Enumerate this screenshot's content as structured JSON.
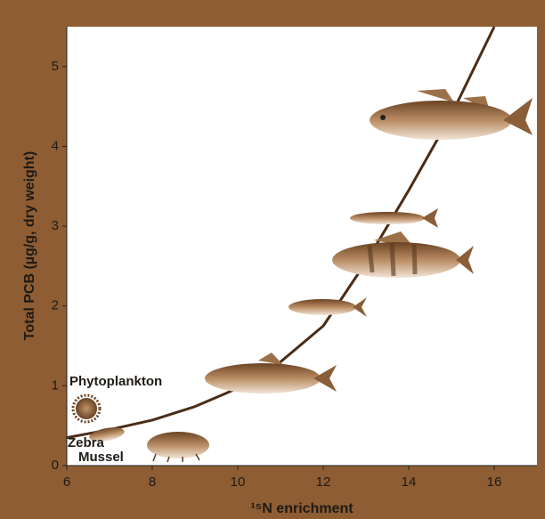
{
  "chart_data": {
    "type": "line",
    "x_label": "¹⁵N enrichment",
    "y_label": "Total PCB (µg/g, dry weight)",
    "x": [
      6,
      7,
      8,
      9,
      10,
      11,
      12,
      13,
      14,
      15,
      16
    ],
    "series": [
      {
        "color": "#4a2c16",
        "values": [
          0.35,
          0.45,
          0.57,
          0.74,
          0.97,
          1.3,
          1.75,
          2.55,
          3.45,
          4.4,
          5.5
        ]
      }
    ],
    "xlim": [
      6,
      17
    ],
    "ylim": [
      0,
      5.5
    ],
    "xticks": [
      6,
      8,
      10,
      12,
      14,
      16
    ],
    "yticks": [
      0,
      1,
      2,
      3,
      4,
      5
    ],
    "annotations": [
      "Phytoplankton",
      "Zebra",
      "Mussel"
    ]
  }
}
